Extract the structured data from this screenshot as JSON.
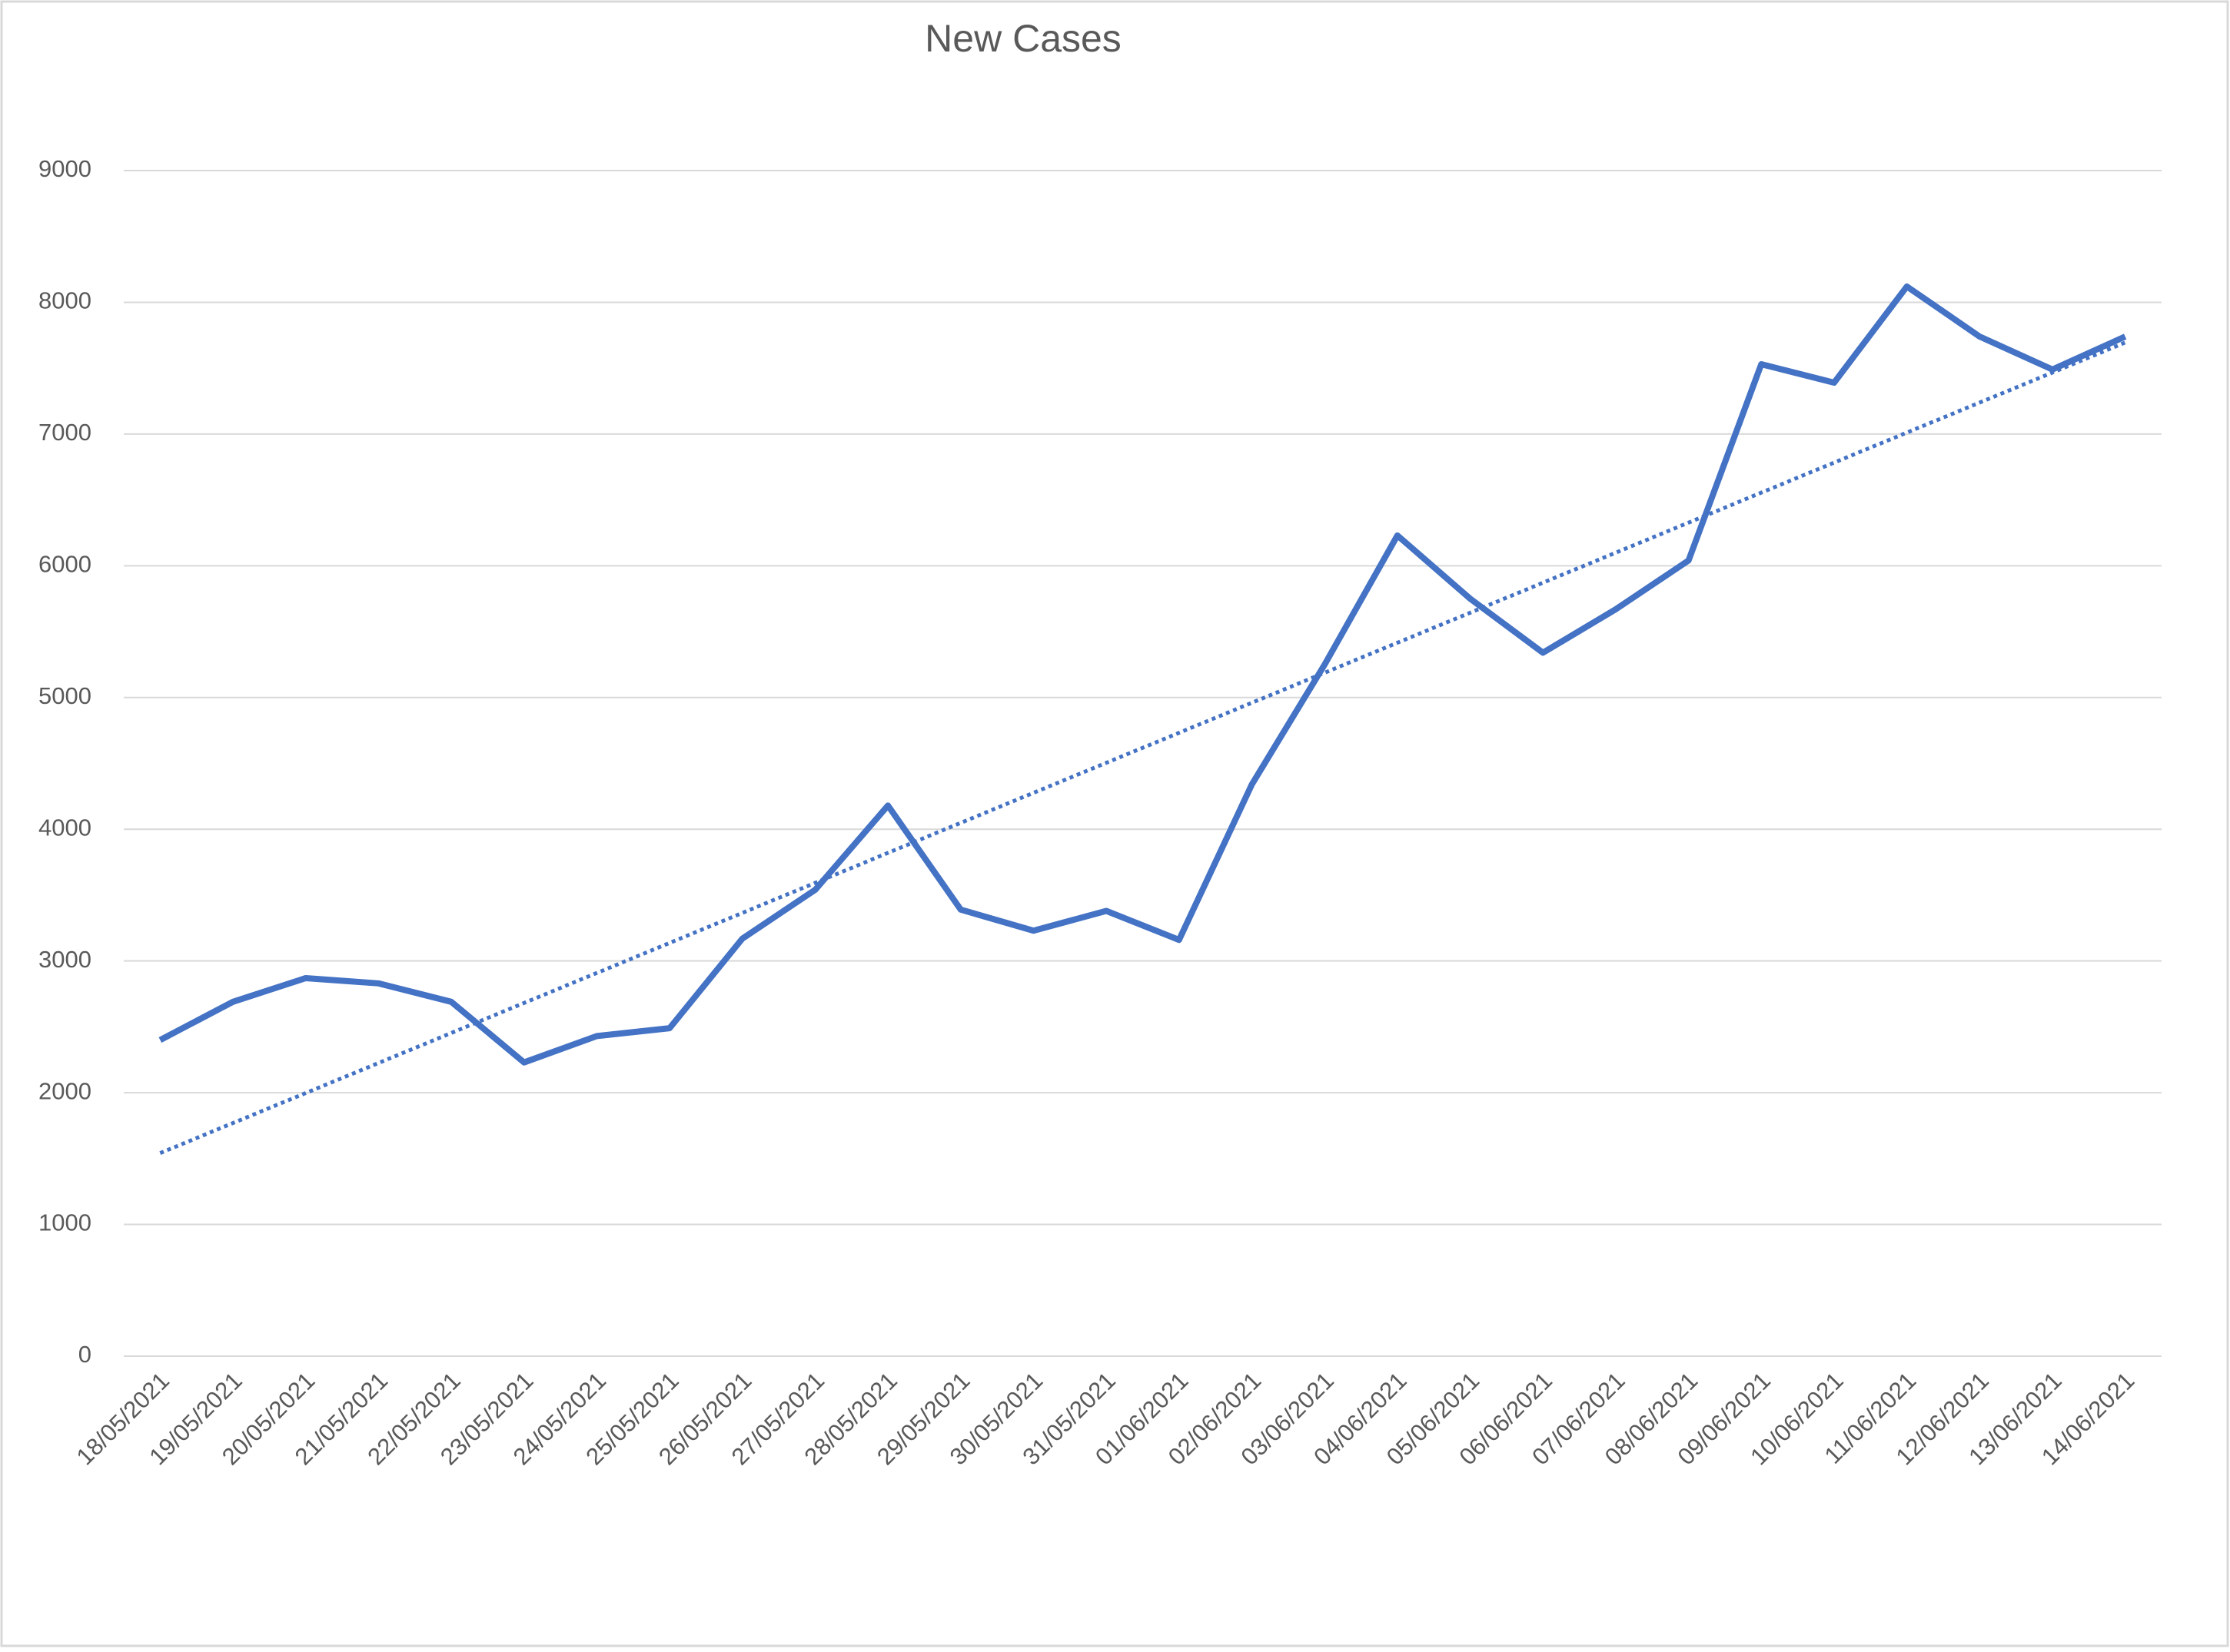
{
  "chart_data": {
    "type": "line",
    "title": "New Cases",
    "categories": [
      "18/05/2021",
      "19/05/2021",
      "20/05/2021",
      "21/05/2021",
      "22/05/2021",
      "23/05/2021",
      "24/05/2021",
      "25/05/2021",
      "26/05/2021",
      "27/05/2021",
      "28/05/2021",
      "29/05/2021",
      "30/05/2021",
      "31/05/2021",
      "01/06/2021",
      "02/06/2021",
      "03/06/2021",
      "04/06/2021",
      "05/06/2021",
      "06/06/2021",
      "07/06/2021",
      "08/06/2021",
      "09/06/2021",
      "10/06/2021",
      "11/06/2021",
      "12/06/2021",
      "13/06/2021",
      "14/06/2021"
    ],
    "values": [
      2400,
      2690,
      2870,
      2830,
      2690,
      2230,
      2430,
      2490,
      3170,
      3540,
      4180,
      3390,
      3230,
      3380,
      3160,
      4340,
      5250,
      6230,
      5750,
      5340,
      5670,
      6040,
      7530,
      7390,
      8120,
      7740,
      7490,
      7740
    ],
    "color": "#4472c4",
    "trendline": "linear",
    "ylim": [
      0,
      9000
    ],
    "yticks": [
      0,
      1000,
      2000,
      3000,
      4000,
      5000,
      6000,
      7000,
      8000,
      9000
    ],
    "grid": true
  }
}
